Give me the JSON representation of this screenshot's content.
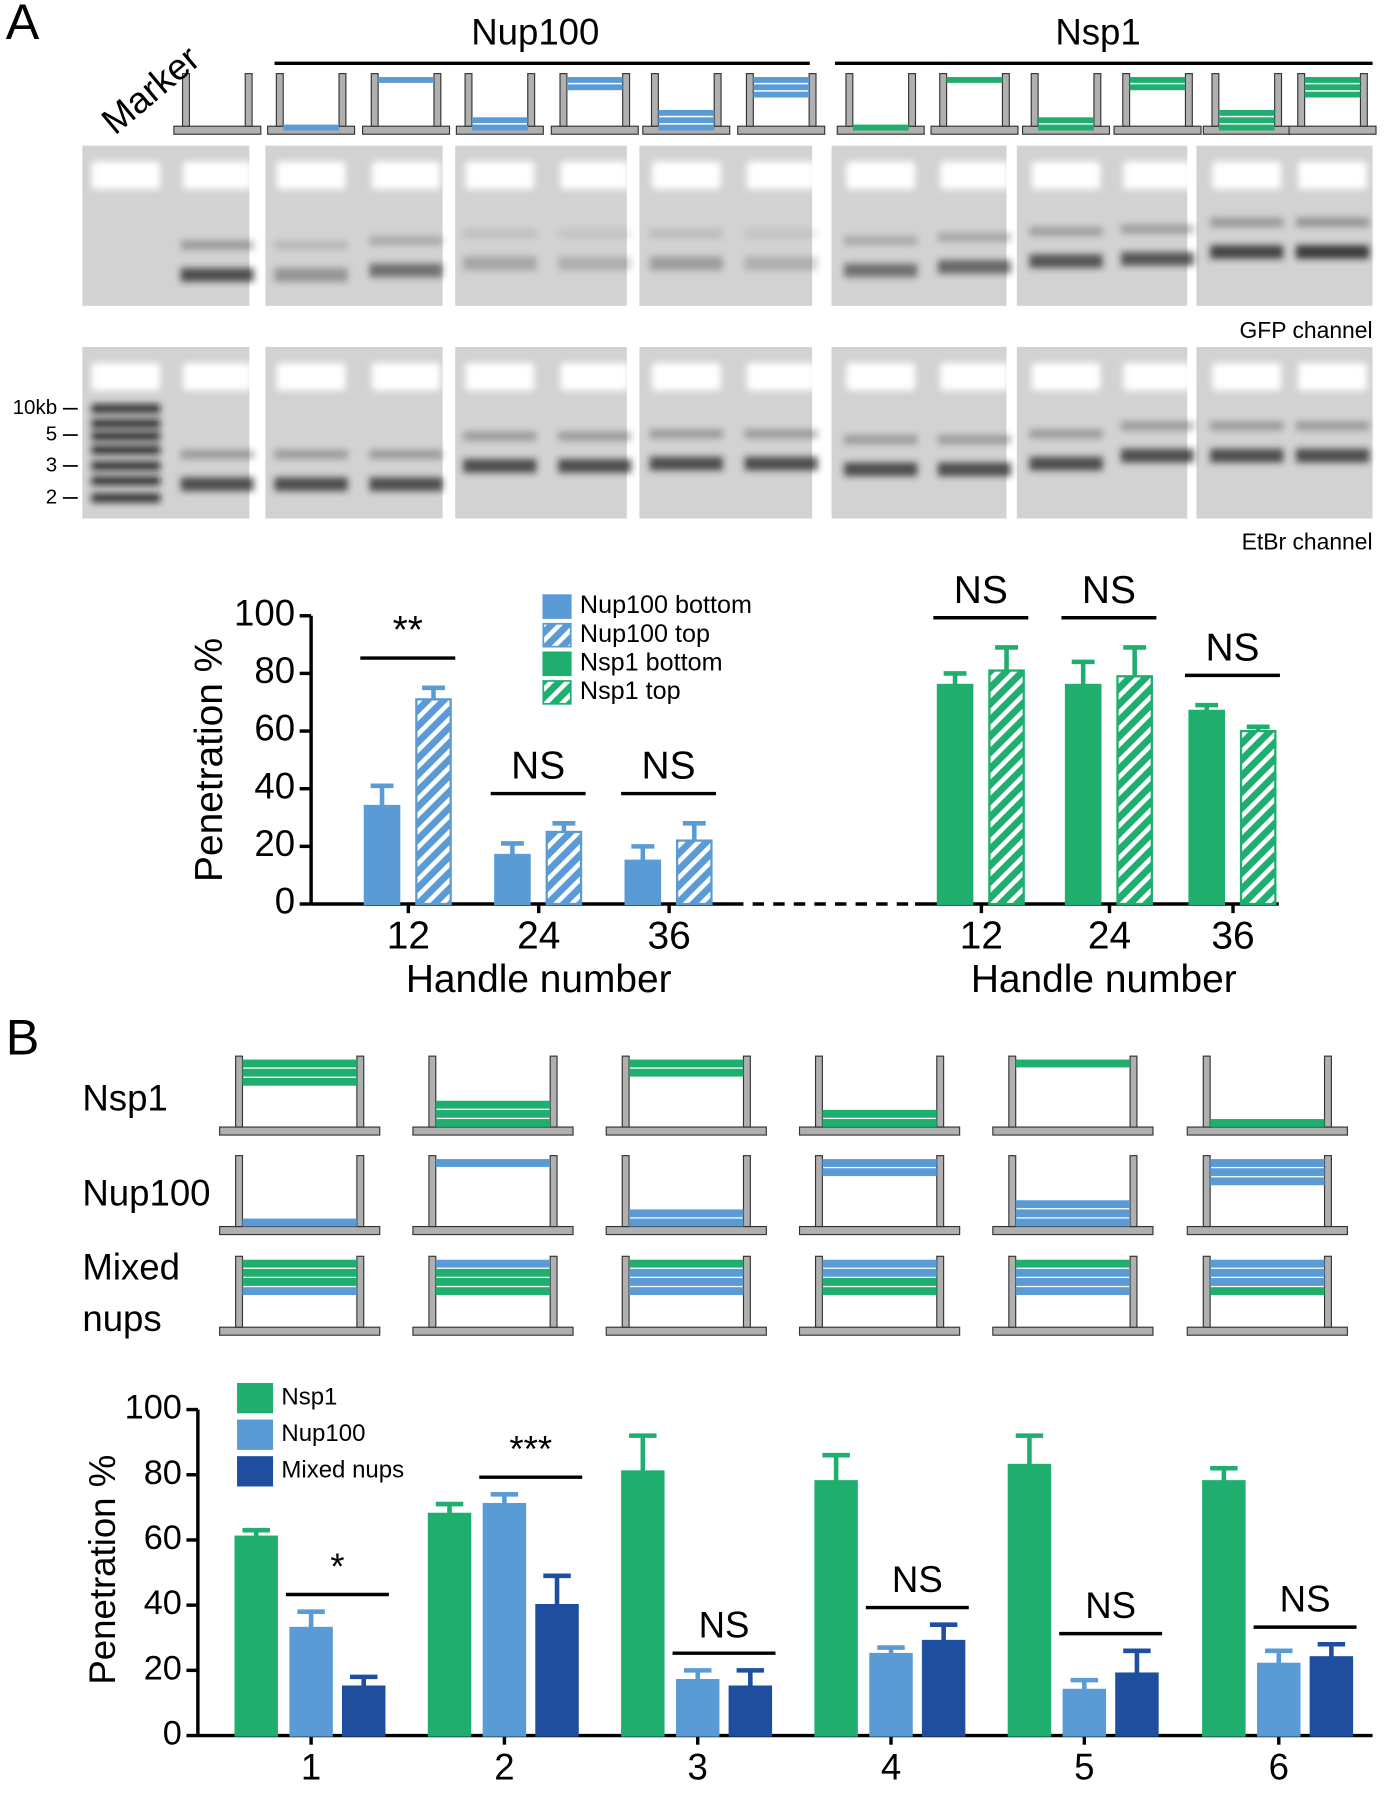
{
  "figure": {
    "panel_a": "A",
    "panel_b": "B",
    "marker": "Marker",
    "group_nup100": "Nup100",
    "group_nsp1": "Nsp1",
    "gfp": "GFP channel",
    "etbr": "EtBr channel",
    "ladder": [
      "10kb",
      "5",
      "3",
      "2"
    ],
    "rows": [
      "Nsp1",
      "Nup100"
    ],
    "row_mixed": [
      "Mixed",
      "nups"
    ]
  },
  "chart_data": [
    {
      "type": "bar",
      "y_label": "Penetration  %",
      "x_label": "Handle number",
      "categories": [
        "12",
        "24",
        "36",
        "12",
        "24",
        "36"
      ],
      "series": [
        {
          "name": "Nup100 bottom",
          "color": "#5b9bd5",
          "hatch": false,
          "values": [
            34,
            17,
            15,
            null,
            null,
            null
          ],
          "errors": [
            7,
            4,
            5,
            null,
            null,
            null
          ]
        },
        {
          "name": "Nup100 top",
          "color": "#5b9bd5",
          "hatch": true,
          "values": [
            71,
            25,
            22,
            null,
            null,
            null
          ],
          "errors": [
            4,
            3,
            6,
            null,
            null,
            null
          ]
        },
        {
          "name": "Nsp1    bottom",
          "color": "#1fae6e",
          "hatch": false,
          "values": [
            null,
            null,
            null,
            76,
            76,
            67
          ],
          "errors": [
            null,
            null,
            null,
            4,
            8,
            2
          ]
        },
        {
          "name": "Nsp1    top",
          "color": "#1fae6e",
          "hatch": true,
          "values": [
            null,
            null,
            null,
            81,
            79,
            60
          ],
          "errors": [
            null,
            null,
            null,
            8,
            10,
            1.5
          ]
        }
      ],
      "significance": [
        "**",
        "NS",
        "NS",
        "NS",
        "NS",
        "NS"
      ],
      "ylim": [
        0,
        100
      ],
      "yticks": [
        0,
        20,
        40,
        60,
        80,
        100
      ]
    },
    {
      "type": "bar",
      "y_label": "Penetration  %",
      "categories": [
        "1",
        "2",
        "3",
        "4",
        "5",
        "6"
      ],
      "series": [
        {
          "name": "Nsp1",
          "color": "#1fae6e",
          "hatch": false,
          "values": [
            61,
            68,
            81,
            78,
            83,
            78
          ],
          "errors": [
            2,
            3,
            11,
            8,
            9,
            4
          ]
        },
        {
          "name": "Nup100",
          "color": "#5b9bd5",
          "hatch": false,
          "values": [
            33,
            71,
            17,
            25,
            14,
            22
          ],
          "errors": [
            5,
            3,
            3,
            2,
            3,
            4
          ]
        },
        {
          "name": "Mixed nups",
          "color": "#1f4e9e",
          "hatch": false,
          "values": [
            15,
            40,
            15,
            29,
            19,
            24
          ],
          "errors": [
            3,
            9,
            5,
            5,
            7,
            4
          ]
        }
      ],
      "significance": [
        "*",
        "***",
        "NS",
        "NS",
        "NS",
        "NS"
      ],
      "ylim": [
        0,
        100
      ],
      "yticks": [
        0,
        20,
        40,
        60,
        80,
        100
      ]
    }
  ]
}
